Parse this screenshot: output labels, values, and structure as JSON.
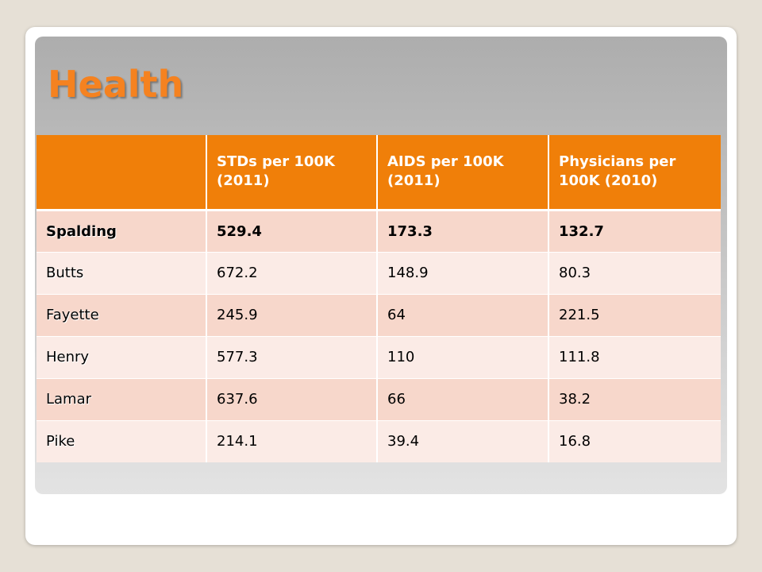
{
  "slide": {
    "title": "Health"
  },
  "table": {
    "headers": [
      "",
      "STDs per 100K (2011)",
      "AIDS per 100K (2011)",
      "Physicians per 100K (2010)"
    ],
    "rows": [
      {
        "county": "Spalding",
        "stds": "529.4",
        "aids": "173.3",
        "physicians": "132.7"
      },
      {
        "county": "Butts",
        "stds": "672.2",
        "aids": "148.9",
        "physicians": "80.3"
      },
      {
        "county": "Fayette",
        "stds": "245.9",
        "aids": "64",
        "physicians": "221.5"
      },
      {
        "county": "Henry",
        "stds": "577.3",
        "aids": "110",
        "physicians": "111.8"
      },
      {
        "county": "Lamar",
        "stds": "637.6",
        "aids": "66",
        "physicians": "38.2"
      },
      {
        "county": "Pike",
        "stds": "214.1",
        "aids": "39.4",
        "physicians": "16.8"
      }
    ]
  },
  "colors": {
    "accent": "#f07f09",
    "title": "#f58220",
    "row_odd": "#f7d7cb",
    "row_even": "#fbebe6"
  }
}
